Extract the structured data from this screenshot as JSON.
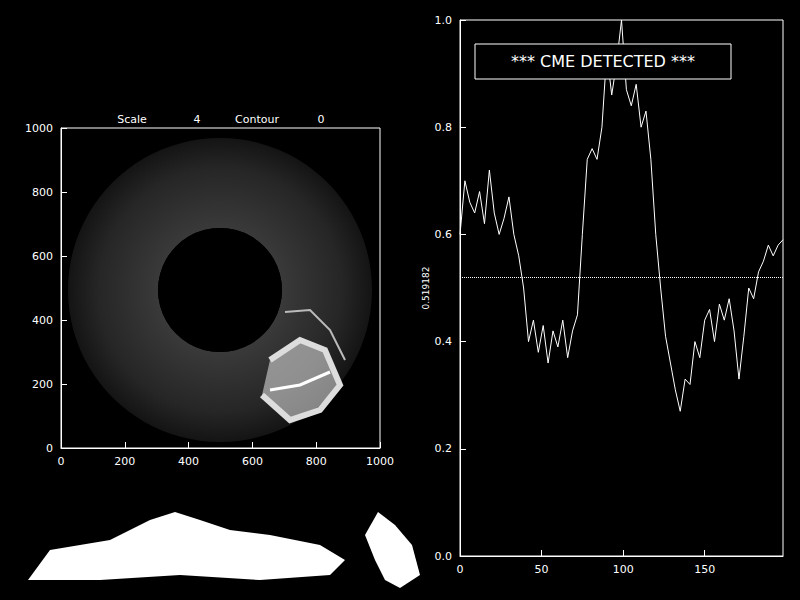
{
  "chart_data": [
    {
      "type": "image",
      "title": [
        "Scale",
        "4",
        "Contour",
        "0"
      ],
      "xlim": [
        0,
        1000
      ],
      "xticks": [
        0,
        200,
        400,
        600,
        800,
        1000
      ],
      "ylim": [
        0,
        1000
      ],
      "yticks": [
        0,
        200,
        400,
        600,
        800,
        1000
      ],
      "grid": false
    },
    {
      "type": "line",
      "ylabel": "0.519182",
      "annotation": "*** CME DETECTED ***",
      "threshold": 0.519182,
      "color": "#ffffff",
      "grid": false,
      "xlim": [
        0,
        198
      ],
      "xticks": [
        0,
        50,
        100,
        150
      ],
      "ylim": [
        0,
        1
      ],
      "yticks": [
        {
          "value": 0,
          "label": "0.0"
        },
        0.2,
        0.4,
        0.6,
        0.8,
        {
          "value": 1,
          "label": "1.0"
        }
      ],
      "x": [
        0,
        3,
        6,
        9,
        12,
        15,
        18,
        21,
        24,
        27,
        30,
        33,
        36,
        39,
        42,
        45,
        48,
        51,
        54,
        57,
        60,
        63,
        66,
        69,
        72,
        75,
        78,
        81,
        84,
        87,
        90,
        93,
        96,
        99,
        102,
        105,
        108,
        111,
        114,
        117,
        120,
        123,
        126,
        129,
        132,
        135,
        138,
        141,
        144,
        147,
        150,
        153,
        156,
        159,
        162,
        165,
        168,
        171,
        174,
        177,
        180,
        183,
        186,
        189,
        192,
        195,
        198
      ],
      "values": [
        0.6,
        0.7,
        0.66,
        0.64,
        0.68,
        0.62,
        0.72,
        0.64,
        0.6,
        0.63,
        0.67,
        0.6,
        0.56,
        0.5,
        0.4,
        0.44,
        0.38,
        0.43,
        0.36,
        0.42,
        0.39,
        0.44,
        0.37,
        0.42,
        0.45,
        0.6,
        0.74,
        0.76,
        0.74,
        0.8,
        0.94,
        0.86,
        0.92,
        1.0,
        0.87,
        0.84,
        0.88,
        0.8,
        0.83,
        0.74,
        0.6,
        0.5,
        0.41,
        0.36,
        0.31,
        0.27,
        0.33,
        0.32,
        0.4,
        0.37,
        0.44,
        0.46,
        0.4,
        0.47,
        0.44,
        0.48,
        0.42,
        0.33,
        0.41,
        0.5,
        0.48,
        0.53,
        0.55,
        0.58,
        0.56,
        0.58,
        0.59
      ]
    }
  ]
}
